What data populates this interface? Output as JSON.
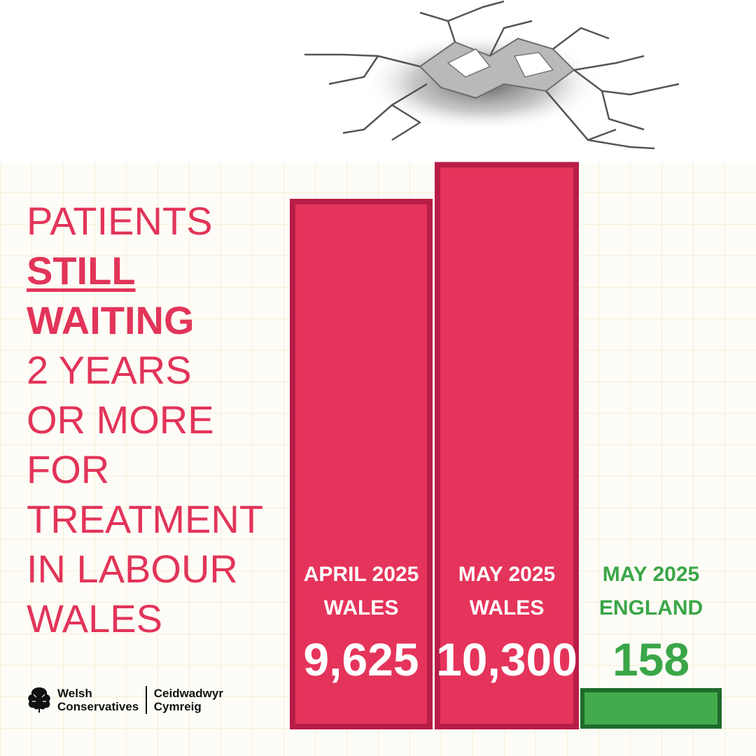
{
  "headline": {
    "line1": "PATIENTS",
    "line2": "STILL",
    "line3": "WAITING",
    "line4": "2 YEARS",
    "line5": "OR MORE",
    "line6": "FOR",
    "line7": "TREATMENT",
    "line8": "IN LABOUR",
    "line9": "WALES"
  },
  "logo": {
    "en_line1": "Welsh",
    "en_line2": "Conservatives",
    "cy_line1": "Ceidwadwyr",
    "cy_line2": "Cymreig",
    "icon": "oak-tree-icon"
  },
  "colors": {
    "wales_bar": "#e5345b",
    "wales_bar_border": "#b81d47",
    "england_bar": "#43ab4b",
    "england_bar_border": "#1f6b2c",
    "headline": "#e23459",
    "england_text": "#3aa648"
  },
  "chart_data": {
    "type": "bar",
    "title": "",
    "xlabel": "",
    "ylabel": "",
    "categories": [
      "APRIL 2025 WALES",
      "MAY 2025 WALES",
      "MAY 2025 ENGLAND"
    ],
    "values": [
      9625,
      10300,
      158
    ],
    "bars": [
      {
        "line1": "APRIL 2025",
        "line2": "WALES",
        "value_label": "9,625",
        "value": 9625,
        "color": "#e5345b"
      },
      {
        "line1": "MAY 2025",
        "line2": "WALES",
        "value_label": "10,300",
        "value": 10300,
        "color": "#e5345b"
      },
      {
        "line1": "MAY 2025",
        "line2": "ENGLAND",
        "value_label": "158",
        "value": 158,
        "color": "#43ab4b"
      }
    ],
    "grid": true,
    "legend": "none",
    "decoration": "cracked-wall-icon"
  }
}
